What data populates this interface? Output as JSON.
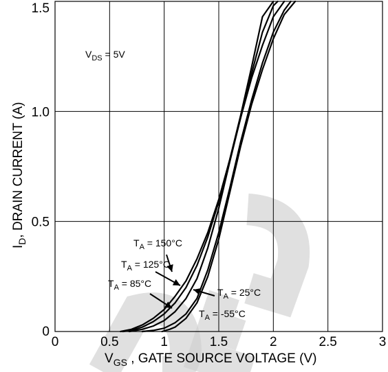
{
  "chart_data": {
    "type": "line",
    "xlabel_main": "V",
    "xlabel_sub": "GS",
    "xlabel_rest": " , GATE SOURCE VOLTAGE (V)",
    "ylabel_main": "I",
    "ylabel_sub": "D",
    "ylabel_rest": ", DRAIN CURRENT (A)",
    "xlim": [
      0,
      3
    ],
    "ylim": [
      0,
      1.5
    ],
    "x_ticks": [
      0,
      0.5,
      1,
      1.5,
      2,
      2.5,
      3
    ],
    "x_tick_labels": [
      "0",
      "0.5",
      "1",
      "1.5",
      "2",
      "2.5",
      "3"
    ],
    "y_ticks": [
      0,
      0.5,
      1.0,
      1.5
    ],
    "y_tick_labels": [
      "0",
      "0.5",
      "1.0",
      "1.5"
    ],
    "grid": true,
    "condition": {
      "main": "V",
      "sub": "DS",
      "rest": " = 5V"
    },
    "series": [
      {
        "name": "T_A = 150°C",
        "label_main": "T",
        "label_sub": "A",
        "label_rest": " = 150°C",
        "x": [
          0.6,
          0.7,
          0.8,
          0.9,
          1.0,
          1.1,
          1.2,
          1.3,
          1.4,
          1.5,
          1.6,
          1.7,
          1.8,
          1.9,
          2.0
        ],
        "y": [
          0.0,
          0.01,
          0.03,
          0.06,
          0.1,
          0.16,
          0.23,
          0.33,
          0.45,
          0.6,
          0.78,
          0.98,
          1.2,
          1.43,
          1.5
        ]
      },
      {
        "name": "T_A = 125°C",
        "label_main": "T",
        "label_sub": "A",
        "label_rest": " = 125°C",
        "x": [
          0.62,
          0.7,
          0.8,
          0.9,
          1.0,
          1.1,
          1.2,
          1.3,
          1.4,
          1.5,
          1.6,
          1.7,
          1.8,
          1.9,
          2.0,
          2.04
        ],
        "y": [
          0.0,
          0.005,
          0.02,
          0.045,
          0.08,
          0.13,
          0.2,
          0.3,
          0.43,
          0.59,
          0.78,
          0.97,
          1.17,
          1.36,
          1.48,
          1.5
        ]
      },
      {
        "name": "T_A = 85°C",
        "label_main": "T",
        "label_sub": "A",
        "label_rest": " = 85°C",
        "x": [
          0.68,
          0.8,
          0.9,
          1.0,
          1.1,
          1.2,
          1.3,
          1.4,
          1.5,
          1.6,
          1.7,
          1.8,
          1.9,
          2.0,
          2.1
        ],
        "y": [
          0.0,
          0.01,
          0.025,
          0.05,
          0.09,
          0.15,
          0.24,
          0.38,
          0.56,
          0.77,
          0.97,
          1.15,
          1.3,
          1.43,
          1.5
        ]
      },
      {
        "name": "T_A = 25°C",
        "label_main": "T",
        "label_sub": "A",
        "label_rest": " = 25°C",
        "x": [
          0.8,
          0.9,
          1.0,
          1.1,
          1.2,
          1.3,
          1.4,
          1.5,
          1.6,
          1.7,
          1.8,
          1.9,
          2.0,
          2.1,
          2.16
        ],
        "y": [
          0.0,
          0.005,
          0.015,
          0.04,
          0.08,
          0.15,
          0.28,
          0.45,
          0.65,
          0.86,
          1.05,
          1.22,
          1.36,
          1.46,
          1.5
        ]
      },
      {
        "name": "T_A = -55°C",
        "label_main": "T",
        "label_sub": "A",
        "label_rest": " = -55°C",
        "x": [
          0.98,
          1.0,
          1.05,
          1.1,
          1.2,
          1.3,
          1.4,
          1.5,
          1.6,
          1.7,
          1.8,
          1.9,
          2.0,
          2.1,
          2.2
        ],
        "y": [
          0.0,
          0.003,
          0.01,
          0.02,
          0.06,
          0.13,
          0.25,
          0.42,
          0.63,
          0.84,
          1.03,
          1.19,
          1.33,
          1.44,
          1.5
        ]
      }
    ]
  }
}
